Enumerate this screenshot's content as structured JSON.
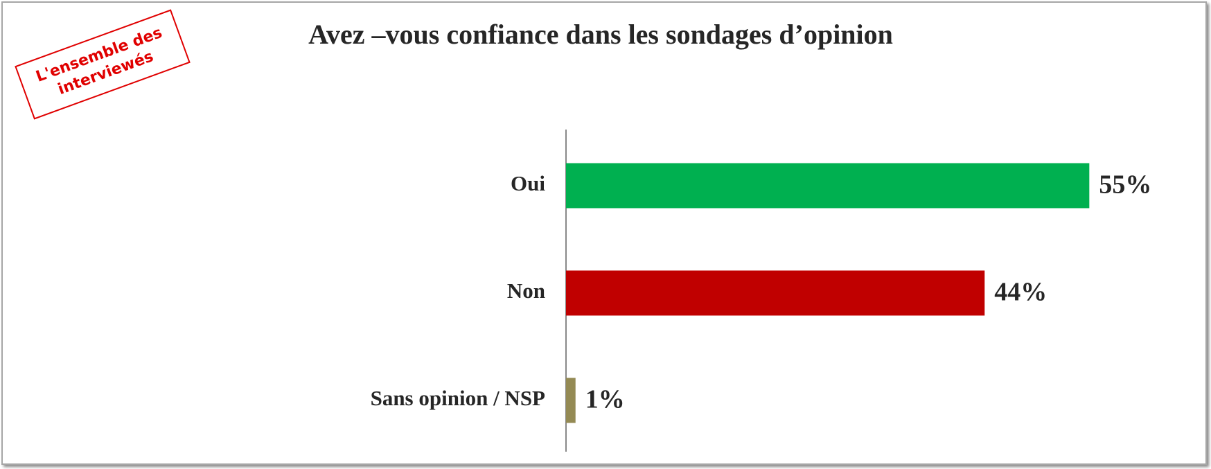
{
  "chart_data": {
    "type": "bar",
    "orientation": "horizontal",
    "title": "Avez –vous confiance dans les sondages d’opinion",
    "annotation": "L'ensemble des interviewés",
    "categories": [
      "Oui",
      "Non",
      "Sans opinion / NSP"
    ],
    "values": [
      55,
      44,
      1
    ],
    "value_labels": [
      "55%",
      "44%",
      "1%"
    ],
    "colors": [
      "#00b050",
      "#c00000",
      "#948a54"
    ],
    "xlim": [
      0,
      60
    ]
  }
}
